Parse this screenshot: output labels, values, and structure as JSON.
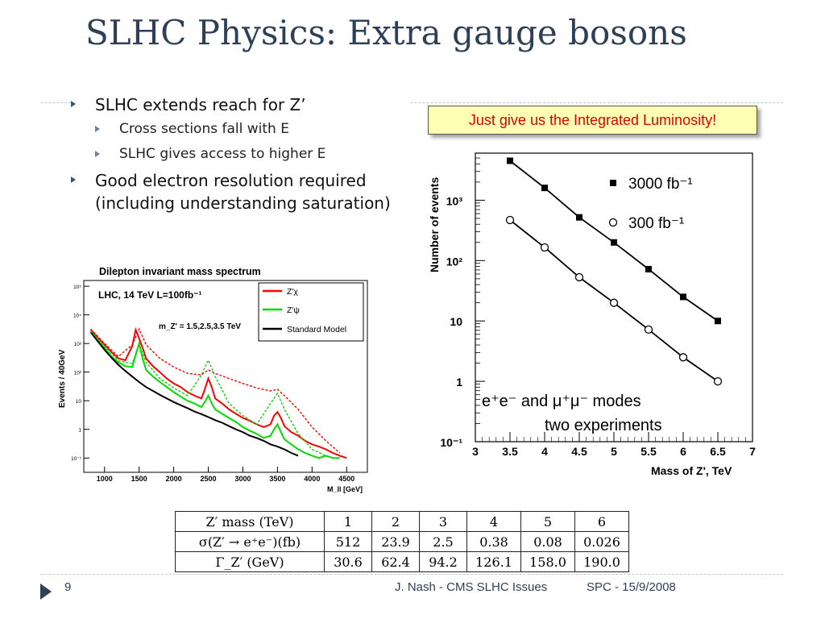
{
  "slide": {
    "title": "SLHC Physics: Extra gauge bosons",
    "bullets": [
      {
        "text": "SLHC extends reach for Z’",
        "sub": [
          "Cross sections fall with E",
          "SLHC gives access to higher E"
        ]
      },
      {
        "text": "Good electron resolution required (including understanding saturation)",
        "sub": []
      }
    ],
    "callout": "Just give us the Integrated Luminosity!",
    "footer": {
      "page": "9",
      "author": "J. Nash - CMS SLHC Issues",
      "date": "SPC - 15/9/2008"
    },
    "colors": {
      "title": "#2e3f58",
      "callout_text": "#e00000",
      "callout_bg": "#ffffb3"
    }
  },
  "chart_data": [
    {
      "type": "line",
      "title": "Dilepton invariant mass spectrum",
      "xlabel": "M_ll [GeV]",
      "ylabel": "Events / 40GeV",
      "xlim": [
        700,
        4800
      ],
      "log_y": true,
      "x_ticks": [
        "1000",
        "1500",
        "2000",
        "2500",
        "3000",
        "3500",
        "4000",
        "4500"
      ],
      "y_ticks": [
        "10⁻¹",
        "1",
        "10",
        "10²",
        "10³",
        "10⁴",
        "10⁵"
      ],
      "annotations": [
        "LHC, 14 TeV   L=100fb⁻¹",
        "m_Z' = 1.5,2.5,3.5 TeV"
      ],
      "legend_position": "top-right",
      "legend": [
        {
          "label": "Z'χ",
          "color": "#ff0000"
        },
        {
          "label": "Z'ψ",
          "color": "#00dd00"
        },
        {
          "label": "Standard Model",
          "color": "#000000"
        }
      ],
      "series": [
        {
          "name": "Z'χ",
          "color": "#ff0000",
          "style": "solid",
          "x": [
            800,
            900,
            1000,
            1100,
            1200,
            1300,
            1400,
            1450,
            1500,
            1550,
            1600,
            1700,
            1800,
            1900,
            2000,
            2100,
            2200,
            2300,
            2400,
            2450,
            2500,
            2550,
            2600,
            2700,
            2800,
            2900,
            3000,
            3100,
            3200,
            3300,
            3400,
            3450,
            3500,
            3550,
            3600,
            3700,
            3800,
            3900,
            4000,
            4100,
            4200,
            4300,
            4400,
            4500
          ],
          "y": [
            3000,
            1600,
            900,
            500,
            300,
            260,
            800,
            3000,
            1500,
            700,
            300,
            160,
            100,
            60,
            40,
            30,
            20,
            15,
            12,
            25,
            60,
            30,
            12,
            8,
            5,
            3.5,
            2.5,
            2,
            1.5,
            1.2,
            1.5,
            3,
            4,
            2.5,
            1.3,
            0.8,
            0.6,
            0.4,
            0.3,
            0.25,
            0.2,
            0.15,
            0.12,
            0.1
          ]
        },
        {
          "name": "Z'ψ",
          "color": "#00dd00",
          "style": "solid",
          "x": [
            800,
            900,
            1000,
            1100,
            1200,
            1300,
            1400,
            1450,
            1500,
            1550,
            1600,
            1700,
            1800,
            1900,
            2000,
            2100,
            2200,
            2300,
            2400,
            2450,
            2500,
            2550,
            2600,
            2700,
            2800,
            2900,
            3000,
            3100,
            3200,
            3300,
            3400,
            3450,
            3500,
            3550,
            3600,
            3700,
            3800,
            3900,
            4000,
            4100,
            4200,
            4300,
            4400
          ],
          "y": [
            2500,
            1300,
            700,
            350,
            220,
            160,
            150,
            400,
            1000,
            300,
            120,
            70,
            45,
            30,
            20,
            14,
            10,
            8,
            6,
            9,
            15,
            8,
            5,
            3.5,
            2.5,
            1.8,
            1.2,
            0.9,
            0.7,
            0.5,
            0.6,
            1,
            1.5,
            0.8,
            0.45,
            0.3,
            0.2,
            0.15,
            0.12,
            0.1,
            0.12,
            0.1,
            0.1
          ]
        },
        {
          "name": "Standard Model",
          "color": "#000000",
          "style": "solid",
          "x": [
            800,
            900,
            1000,
            1100,
            1200,
            1300,
            1400,
            1500,
            1600,
            1700,
            1800,
            1900,
            2000,
            2100,
            2200,
            2300,
            2400,
            2500,
            2600,
            2700,
            2800,
            2900,
            3000,
            3100,
            3200,
            3300,
            3400,
            3500,
            3600,
            3700,
            3800
          ],
          "y": [
            2500,
            1200,
            600,
            320,
            180,
            110,
            70,
            45,
            30,
            22,
            16,
            12,
            9,
            7,
            5.5,
            4.2,
            3.4,
            2.7,
            2.1,
            1.7,
            1.3,
            1,
            0.8,
            0.6,
            0.5,
            0.4,
            0.3,
            0.25,
            0.2,
            0.15,
            0.12
          ]
        },
        {
          "name": "Z'χ (dashed)",
          "color": "#ff0000",
          "style": "dashed",
          "x": [
            800,
            1000,
            1200,
            1400,
            1500,
            1600,
            1800,
            2000,
            2200,
            2400,
            2500,
            2600,
            2800,
            3000,
            3200,
            3400,
            3500,
            3600,
            3800,
            4000,
            4200,
            4400
          ],
          "y": [
            3200,
            1000,
            350,
            900,
            3200,
            900,
            300,
            150,
            90,
            80,
            120,
            90,
            60,
            40,
            28,
            22,
            25,
            15,
            5,
            1.2,
            0.4,
            0.15
          ]
        },
        {
          "name": "Z'ψ (dashed)",
          "color": "#00dd00",
          "style": "dashed",
          "x": [
            800,
            1000,
            1200,
            1400,
            1500,
            1600,
            1800,
            2000,
            2200,
            2400,
            2500,
            2600,
            2800,
            3000,
            3200,
            3400,
            3500,
            3600,
            3800,
            4000,
            4200
          ],
          "y": [
            2700,
            800,
            250,
            200,
            900,
            220,
            60,
            28,
            15,
            80,
            260,
            70,
            8,
            3,
            1.5,
            8,
            18,
            5,
            0.7,
            0.2,
            0.12
          ]
        }
      ]
    },
    {
      "type": "scatter",
      "xlabel": "Mass of Z', TeV",
      "ylabel": "Number of events",
      "xlim": [
        3,
        7
      ],
      "log_y": true,
      "ylim": [
        0.1,
        10000
      ],
      "x_ticks": [
        "3",
        "3.5",
        "4",
        "4.5",
        "5",
        "5.5",
        "6",
        "6.5",
        "7"
      ],
      "y_ticks": [
        "10⁻¹",
        "1",
        "10",
        "10²",
        "10³"
      ],
      "annotations": [
        "e⁺e⁻ and μ⁺μ⁻ modes",
        "two experiments"
      ],
      "legend_position": "top-right",
      "series": [
        {
          "name": "3000 fb⁻¹",
          "marker": "filled-square",
          "x": [
            3.5,
            4,
            4.5,
            5,
            5.5,
            6,
            6.5
          ],
          "y": [
            4500,
            1600,
            520,
            200,
            72,
            25,
            10
          ]
        },
        {
          "name": "300 fb⁻¹",
          "marker": "open-circle",
          "x": [
            3.5,
            4,
            4.5,
            5,
            5.5,
            6,
            6.5
          ],
          "y": [
            470,
            165,
            53,
            20,
            7.2,
            2.5,
            1
          ]
        }
      ]
    }
  ],
  "table": {
    "header": [
      "Z′ mass (TeV)",
      "1",
      "2",
      "3",
      "4",
      "5",
      "6"
    ],
    "rows": [
      [
        "σ(Z′ → e⁺e⁻)(fb)",
        "512",
        "23.9",
        "2.5",
        "0.38",
        "0.08",
        "0.026"
      ],
      [
        "Γ_Z′ (GeV)",
        "30.6",
        "62.4",
        "94.2",
        "126.1",
        "158.0",
        "190.0"
      ]
    ]
  }
}
